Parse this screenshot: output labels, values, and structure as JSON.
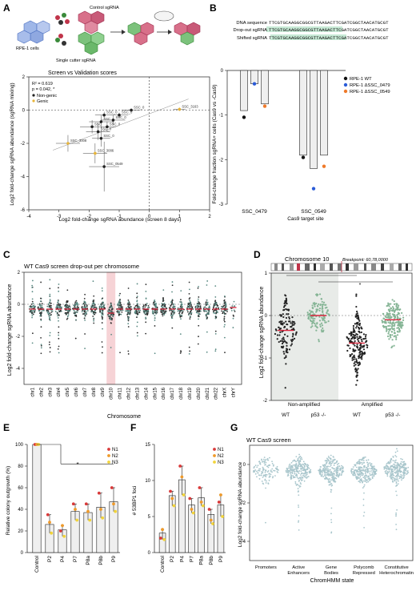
{
  "panels": {
    "A": {
      "letter": "A",
      "schematic": {
        "labels": [
          "Control sgRNA",
          "RPE-1 cells",
          "Single cutter sgRNA"
        ]
      },
      "chart_data": {
        "type": "scatter",
        "title": "Screen vs Validation scores",
        "xlabel": "Log2 fold-change sgRNA abundance (screen 8 days)",
        "ylabel": "Log2 fold-change sgRNA abundance (sgRNA mixing)",
        "xlim": [
          -4,
          2
        ],
        "ylim": [
          -6,
          2
        ],
        "xticks": [
          -4,
          -3,
          -2,
          -1,
          0,
          1,
          2
        ],
        "yticks": [
          -6,
          -4,
          -2,
          0,
          2
        ],
        "stats": [
          "R² = 0.619",
          "p = 0.042, *"
        ],
        "legend": [
          {
            "name": "Non-genic",
            "color": "#222222"
          },
          {
            "name": "Genic",
            "color": "#e8b53a"
          }
        ],
        "points": [
          {
            "label": "SSC_3163",
            "x": 1.0,
            "y": 0.05,
            "type": "genic",
            "xerr": 0.2,
            "yerr": 0.1
          },
          {
            "label": "SSC_0",
            "x": -0.6,
            "y": 0.0,
            "type": "non-genic",
            "xerr": 0.3,
            "yerr": 0.1
          },
          {
            "label": "SSC_0",
            "x": -1.0,
            "y": -0.3,
            "type": "non-genic",
            "xerr": 0.3,
            "yerr": 0.15
          },
          {
            "label": "SSC_0",
            "x": -1.5,
            "y": -0.3,
            "type": "non-genic",
            "xerr": 0.3,
            "yerr": 0.2
          },
          {
            "label": "SSC_0",
            "x": -1.2,
            "y": -0.6,
            "type": "non-genic",
            "xerr": 0.4,
            "yerr": 0.3
          },
          {
            "label": "SSC",
            "x": -1.6,
            "y": -0.7,
            "type": "non-genic",
            "xerr": 0.4,
            "yerr": 0.4
          },
          {
            "label": "SSC",
            "x": -1.9,
            "y": -1.0,
            "type": "non-genic",
            "xerr": 0.4,
            "yerr": 0.4
          },
          {
            "label": "SSC_0",
            "x": -1.4,
            "y": -1.0,
            "type": "non-genic",
            "xerr": 0.3,
            "yerr": 0.3
          },
          {
            "label": "SSC_0",
            "x": -1.7,
            "y": -1.3,
            "type": "non-genic",
            "xerr": 0.4,
            "yerr": 0.5
          },
          {
            "label": "SSC_0",
            "x": -1.6,
            "y": -1.7,
            "type": "non-genic",
            "xerr": 0.3,
            "yerr": 0.5
          },
          {
            "label": "SSC_3008",
            "x": -2.7,
            "y": -2.0,
            "type": "genic",
            "xerr": 0.4,
            "yerr": 0.5
          },
          {
            "label": "SSC_3086",
            "x": -1.8,
            "y": -2.6,
            "type": "genic",
            "xerr": 0.4,
            "yerr": 0.6
          },
          {
            "label": "SSC_0549",
            "x": -1.5,
            "y": -3.4,
            "type": "non-genic",
            "xerr": 0.5,
            "yerr": 1.5
          }
        ]
      }
    },
    "B": {
      "letter": "B",
      "sequences": [
        {
          "label": "DNA sequence",
          "seq": "TTCGTGCAAGGCGGCGTTAAGACTTCGATCGGCTAACATGCGT"
        },
        {
          "label": "Drop-out sgRNA",
          "seq": "TTCGTGCAAGGCGGCGTTAAGACTTCGATCGGCTAACATGCGT"
        },
        {
          "label": "Shifted sgRNA",
          "seq": "TTCGTGCAAGGCGGCGTTAAGACTTCGATCGGCTAACATGCGT"
        }
      ],
      "chart_data": {
        "type": "bar",
        "xlabel": "Cas9 target site",
        "ylabel": "Fold-change fraction sgRNA+ cells (Cas9 vs -Cas9)",
        "ylim": [
          -3,
          0
        ],
        "yticks": [
          -3,
          -2,
          -1,
          0
        ],
        "categories": [
          "SSC_0479",
          "SSC_0549"
        ],
        "series": [
          {
            "name": "RPE-1 WT",
            "color": "#111111",
            "values": [
              -0.9,
              -1.9
            ],
            "points": [
              -1.05,
              -1.95
            ]
          },
          {
            "name": "RPE-1 ΔSSC_0479",
            "color": "#2a5bd7",
            "values": [
              -0.3,
              -2.2
            ],
            "points": [
              -0.3,
              -2.65
            ]
          },
          {
            "name": "RPE-1 ΔSSC_0549",
            "color": "#ef7a2a",
            "values": [
              -0.75,
              -1.9
            ],
            "points": [
              -0.8,
              -2.15
            ]
          }
        ]
      }
    },
    "C": {
      "letter": "C",
      "chart_data": {
        "type": "scatter",
        "title": "WT Cas9 screen drop-out per chromosome",
        "xlabel": "Chromosome",
        "ylabel": "Log2 fold-change sgRNA abundance",
        "ylim": [
          -5,
          2
        ],
        "yticks": [
          -4,
          -2,
          0,
          2
        ],
        "categories": [
          "chr1",
          "chr2",
          "chr3",
          "chr4",
          "chr5",
          "chr6",
          "chr7",
          "chr8",
          "chr9",
          "chr10",
          "chr11",
          "chr12",
          "chr13",
          "chr14",
          "chr15",
          "chr16",
          "chr17",
          "chr18",
          "chr19",
          "chr20",
          "chr21",
          "chr22",
          "chrX",
          "chrY"
        ],
        "medians": [
          -0.3,
          -0.3,
          -0.3,
          -0.3,
          -0.3,
          -0.3,
          -0.3,
          -0.3,
          -0.3,
          -0.55,
          -0.3,
          -0.3,
          -0.3,
          -0.3,
          -0.3,
          -0.3,
          -0.3,
          -0.3,
          -0.3,
          -0.3,
          -0.3,
          -0.3,
          -0.3,
          -0.2
        ],
        "highlight": "chr10"
      }
    },
    "D": {
      "letter": "D",
      "chromosome_title": "Chromosome 10",
      "breakpoint": "Breakpoint: 60,78,0000",
      "significance": [
        "****",
        "*"
      ],
      "chart_data": {
        "type": "scatter",
        "ylabel": "Log2 fold-change sgRNA abundance",
        "ylim": [
          -2,
          1
        ],
        "yticks": [
          -2,
          -1,
          0,
          1
        ],
        "groups": [
          {
            "region": "Non-amplified",
            "categories": [
              "WT",
              "p53 -/-"
            ],
            "medians": [
              -0.35,
              0.0
            ]
          },
          {
            "region": "Amplified",
            "categories": [
              "WT",
              "p53 -/-"
            ],
            "medians": [
              -0.65,
              -0.1
            ]
          }
        ]
      }
    },
    "E": {
      "letter": "E",
      "significance": "*",
      "chart_data": {
        "type": "bar",
        "ylabel": "Relative colony outgrowth (%)",
        "ylim": [
          0,
          100
        ],
        "yticks": [
          0,
          20,
          40,
          60,
          80,
          100
        ],
        "categories": [
          "Control",
          "P2",
          "P4",
          "P7",
          "P8a",
          "P8b",
          "P9"
        ],
        "values": [
          100,
          26,
          21,
          38,
          37,
          42,
          47
        ],
        "series": [
          {
            "name": "N1",
            "color": "#d93a3a",
            "values": [
              100,
              35,
              20,
              45,
              45,
              55,
              60
            ]
          },
          {
            "name": "N2",
            "color": "#ef9a2a",
            "values": [
              100,
              28,
              25,
              40,
              38,
              40,
              45
            ]
          },
          {
            "name": "N3",
            "color": "#f2d43a",
            "values": [
              100,
              18,
              15,
              30,
              30,
              32,
              38
            ]
          }
        ]
      }
    },
    "F": {
      "letter": "F",
      "chart_data": {
        "type": "bar",
        "ylabel": "# 53BP1 foci",
        "ylim": [
          0,
          15
        ],
        "yticks": [
          0,
          5,
          10,
          15
        ],
        "categories": [
          "Control",
          "P2",
          "P4",
          "P7",
          "P8a",
          "P8b",
          "P9"
        ],
        "values": [
          2.7,
          7.9,
          10.1,
          6.6,
          7.6,
          5.3,
          6.6
        ],
        "series": [
          {
            "name": "N1",
            "color": "#d93a3a",
            "values": [
              2.0,
              8.5,
              12.0,
              7.5,
              9.0,
              6.0,
              7.0
            ]
          },
          {
            "name": "N2",
            "color": "#ef9a2a",
            "values": [
              3.2,
              7.5,
              10.5,
              6.0,
              7.0,
              4.5,
              8.0
            ]
          },
          {
            "name": "N3",
            "color": "#f2d43a",
            "values": [
              1.8,
              6.5,
              8.0,
              5.5,
              6.5,
              4.0,
              5.0
            ]
          }
        ]
      }
    },
    "G": {
      "letter": "G",
      "chart_data": {
        "type": "scatter",
        "title": "WT Cas9 screen",
        "xlabel": "ChromHMM state",
        "ylabel": "Log2 fold-change sgRNA abundance",
        "ylim": [
          -5,
          1
        ],
        "yticks": [
          -4,
          -2,
          0
        ],
        "categories": [
          "Promoters",
          "Active Enhancers",
          "Gene Bodies",
          "Polycomb Repressed",
          "Constitutive Heterochromatin"
        ],
        "medians": [
          -0.3,
          -0.35,
          -0.3,
          -0.35,
          -0.25
        ]
      }
    }
  }
}
